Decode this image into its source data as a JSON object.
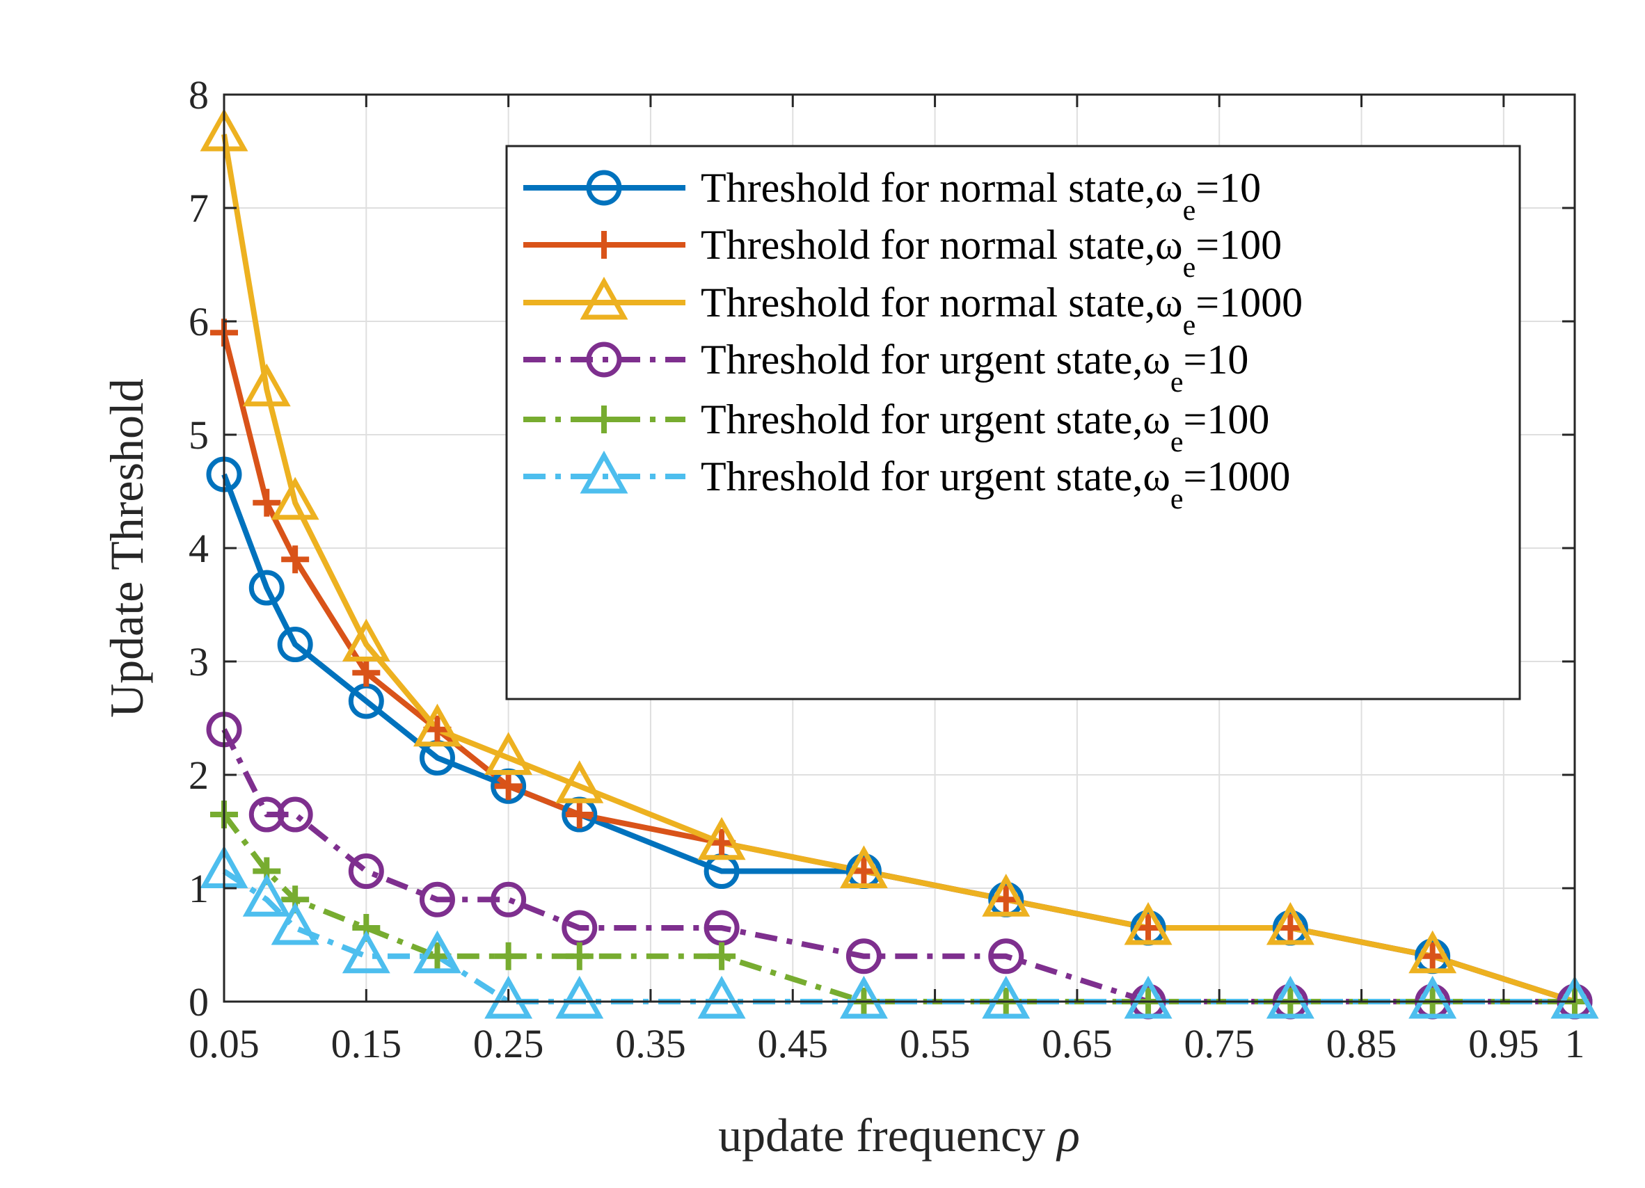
{
  "chart_data": {
    "type": "line",
    "title": "",
    "xlabel": "update frequency",
    "xlabel_symbol": "ρ",
    "ylabel": "Update Threshold",
    "xlim": [
      0.05,
      1
    ],
    "ylim": [
      0,
      8
    ],
    "grid": true,
    "legend_position": "top-right",
    "x_ticks": [
      0.05,
      0.15,
      0.25,
      0.35,
      0.45,
      0.55,
      0.65,
      0.75,
      0.85,
      0.95,
      1
    ],
    "x_tick_labels": [
      "0.05",
      "0.15",
      "0.25",
      "0.35",
      "0.45",
      "0.55",
      "0.65",
      "0.75",
      "0.85",
      "0.95",
      "1"
    ],
    "y_ticks": [
      0,
      1,
      2,
      3,
      4,
      5,
      6,
      7,
      8
    ],
    "y_tick_labels": [
      "0",
      "1",
      "2",
      "3",
      "4",
      "5",
      "6",
      "7",
      "8"
    ],
    "x": [
      0.05,
      0.08,
      0.1,
      0.15,
      0.2,
      0.25,
      0.3,
      0.4,
      0.5,
      0.6,
      0.7,
      0.8,
      0.9,
      1.0
    ],
    "series": [
      {
        "name": "Threshold for normal state,ω",
        "name_sub": "e",
        "name_suffix": "=10",
        "color": "#0072BD",
        "marker": "circle",
        "dash": "solid",
        "values": [
          4.65,
          3.65,
          3.15,
          2.65,
          2.15,
          1.9,
          1.65,
          1.15,
          1.15,
          0.9,
          0.65,
          0.65,
          0.4,
          0.0
        ]
      },
      {
        "name": "Threshold for normal state,ω",
        "name_sub": "e",
        "name_suffix": "=100",
        "color": "#D95319",
        "marker": "plus",
        "dash": "solid",
        "values": [
          5.9,
          4.4,
          3.9,
          2.9,
          2.4,
          1.9,
          1.65,
          1.4,
          1.15,
          0.9,
          0.65,
          0.65,
          0.4,
          0.0
        ]
      },
      {
        "name": "Threshold for normal state,ω",
        "name_sub": "e",
        "name_suffix": "=1000",
        "color": "#EDB120",
        "marker": "triangle",
        "dash": "solid",
        "values": [
          7.65,
          5.4,
          4.4,
          3.15,
          2.4,
          2.15,
          1.9,
          1.4,
          1.15,
          0.9,
          0.65,
          0.65,
          0.4,
          0.0
        ]
      },
      {
        "name": "Threshold for urgent state,ω",
        "name_sub": "e",
        "name_suffix": "=10",
        "color": "#7E2F8E",
        "marker": "circle",
        "dash": "dashdot",
        "values": [
          2.4,
          1.65,
          1.65,
          1.15,
          0.9,
          0.9,
          0.65,
          0.65,
          0.4,
          0.4,
          0.0,
          0.0,
          0.0,
          0.0
        ]
      },
      {
        "name": "Threshold for urgent state,ω",
        "name_sub": "e",
        "name_suffix": "=100",
        "color": "#77AC30",
        "marker": "plus",
        "dash": "dashdot",
        "values": [
          1.65,
          1.15,
          0.9,
          0.65,
          0.4,
          0.4,
          0.4,
          0.4,
          0.0,
          0.0,
          0.0,
          0.0,
          0.0,
          0.0
        ]
      },
      {
        "name": "Threshold for urgent state,ω",
        "name_sub": "e",
        "name_suffix": "=1000",
        "color": "#4DBEEE",
        "marker": "triangle",
        "dash": "dashdot",
        "values": [
          1.15,
          0.9,
          0.65,
          0.4,
          0.4,
          0.0,
          0.0,
          0.0,
          0.0,
          0.0,
          0.0,
          0.0,
          0.0,
          0.0
        ]
      }
    ]
  }
}
